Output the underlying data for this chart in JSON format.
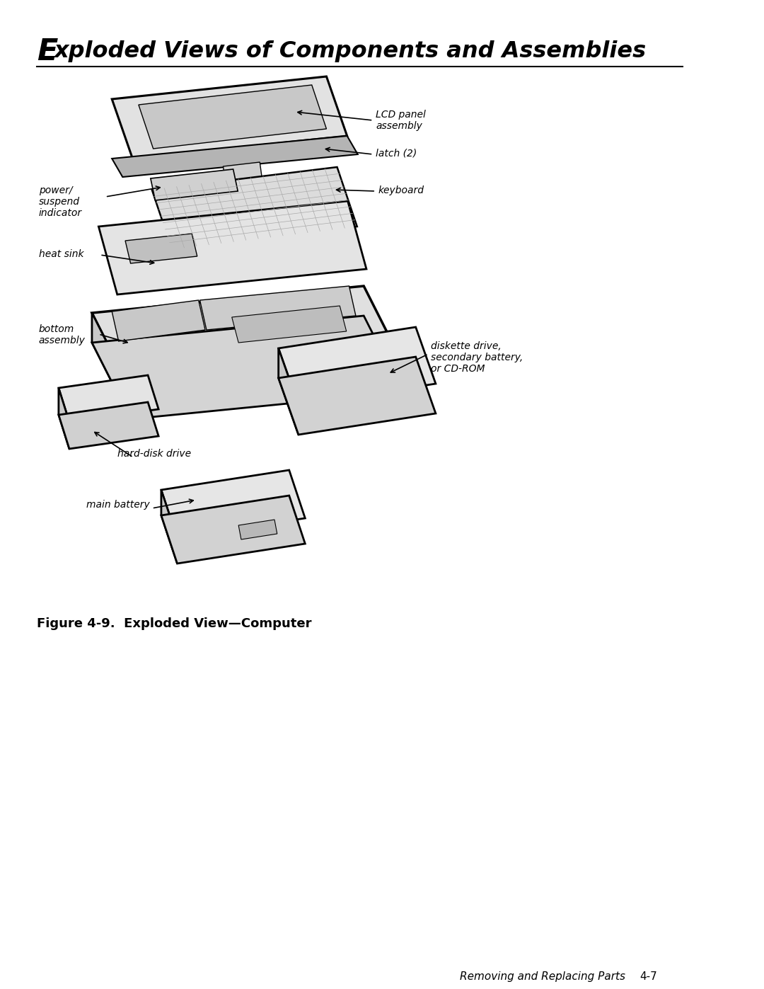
{
  "title_E": "E",
  "title_rest": "xploded Views of Components and Assemblies",
  "figure_caption": "Figure 4-9.  Exploded View—Computer",
  "footer_text": "Removing and Replacing Parts",
  "footer_page": "4-7",
  "background_color": "#ffffff",
  "label_lcd_panel": "LCD panel\nassembly",
  "label_latch": "latch (2)",
  "label_keyboard": "keyboard",
  "label_power_suspend": "power/\nsuspend\nindicator",
  "label_heat_sink": "heat sink",
  "label_bottom_assembly": "bottom\nassembly",
  "label_diskette_drive": "diskette drive,\nsecondary battery,\nor CD-ROM",
  "label_hard_disk": "hard-disk drive",
  "label_main_battery": "main battery"
}
